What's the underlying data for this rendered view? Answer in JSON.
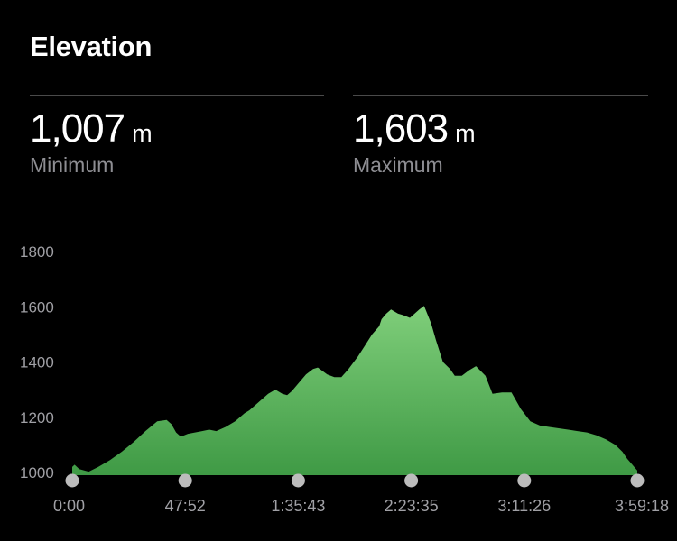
{
  "header": {
    "title": "Elevation"
  },
  "stats": {
    "minimum": {
      "value": "1,007",
      "unit": "m",
      "label": "Minimum"
    },
    "maximum": {
      "value": "1,603",
      "unit": "m",
      "label": "Maximum"
    }
  },
  "colors": {
    "background": "#000000",
    "fill_top": "#7fce7a",
    "fill_bottom": "#3f9a45",
    "marker": "#bcbcbc"
  },
  "chart_data": {
    "type": "area",
    "title": "",
    "xlabel": "",
    "ylabel": "",
    "ylim": [
      1000,
      1800
    ],
    "y_ticks": [
      "1000",
      "1200",
      "1400",
      "1600",
      "1800"
    ],
    "x_ticks": [
      "0:00",
      "47:52",
      "1:35:43",
      "2:23:35",
      "3:11:26",
      "3:59:18"
    ],
    "x_range_minutes": [
      0,
      239.3
    ],
    "grid": false,
    "legend": "none",
    "series": [
      {
        "x": [
          0,
          1,
          3,
          7,
          11,
          16,
          21,
          26,
          31,
          36,
          40,
          42,
          44,
          46,
          49,
          52,
          55,
          58,
          61,
          65,
          69,
          73,
          75,
          79,
          83,
          86,
          89,
          91,
          93,
          96,
          99,
          102,
          104,
          108,
          111,
          114,
          117,
          121,
          124,
          127,
          130,
          131,
          133,
          135,
          138,
          140,
          143,
          145,
          147,
          149,
          152,
          154,
          157,
          160,
          162,
          165,
          168,
          171,
          175,
          178,
          182,
          186,
          190,
          194,
          198,
          202,
          206,
          210,
          214,
          218,
          222,
          226,
          230,
          233,
          235,
          237,
          239.3
        ],
        "y": [
          1020,
          1028,
          1012,
          1003,
          1020,
          1045,
          1075,
          1110,
          1150,
          1185,
          1190,
          1175,
          1145,
          1130,
          1140,
          1145,
          1150,
          1155,
          1150,
          1165,
          1185,
          1215,
          1225,
          1255,
          1285,
          1300,
          1285,
          1280,
          1295,
          1325,
          1355,
          1375,
          1380,
          1355,
          1345,
          1345,
          1375,
          1420,
          1460,
          1500,
          1530,
          1555,
          1575,
          1590,
          1575,
          1570,
          1560,
          1575,
          1590,
          1603,
          1540,
          1480,
          1400,
          1375,
          1350,
          1350,
          1370,
          1385,
          1350,
          1285,
          1290,
          1290,
          1230,
          1185,
          1170,
          1165,
          1160,
          1155,
          1150,
          1145,
          1135,
          1120,
          1100,
          1075,
          1050,
          1030,
          1007
        ]
      }
    ]
  }
}
